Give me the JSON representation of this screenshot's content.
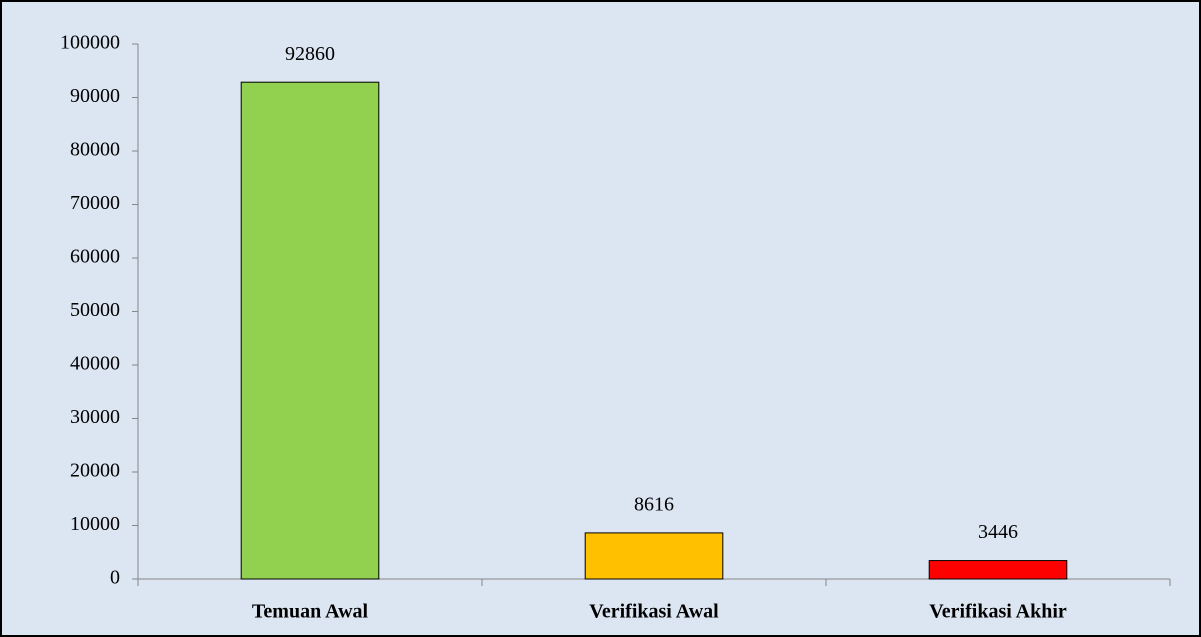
{
  "chart_data": {
    "type": "bar",
    "categories": [
      "Temuan Awal",
      "Verifikasi Awal",
      "Verifikasi Akhir"
    ],
    "values": [
      92860,
      8616,
      3446
    ],
    "colors": [
      "#92d050",
      "#ffc000",
      "#ff0000"
    ],
    "ylim": [
      0,
      100000
    ],
    "yticks": [
      0,
      10000,
      20000,
      30000,
      40000,
      50000,
      60000,
      70000,
      80000,
      90000,
      100000
    ],
    "grid": false
  }
}
